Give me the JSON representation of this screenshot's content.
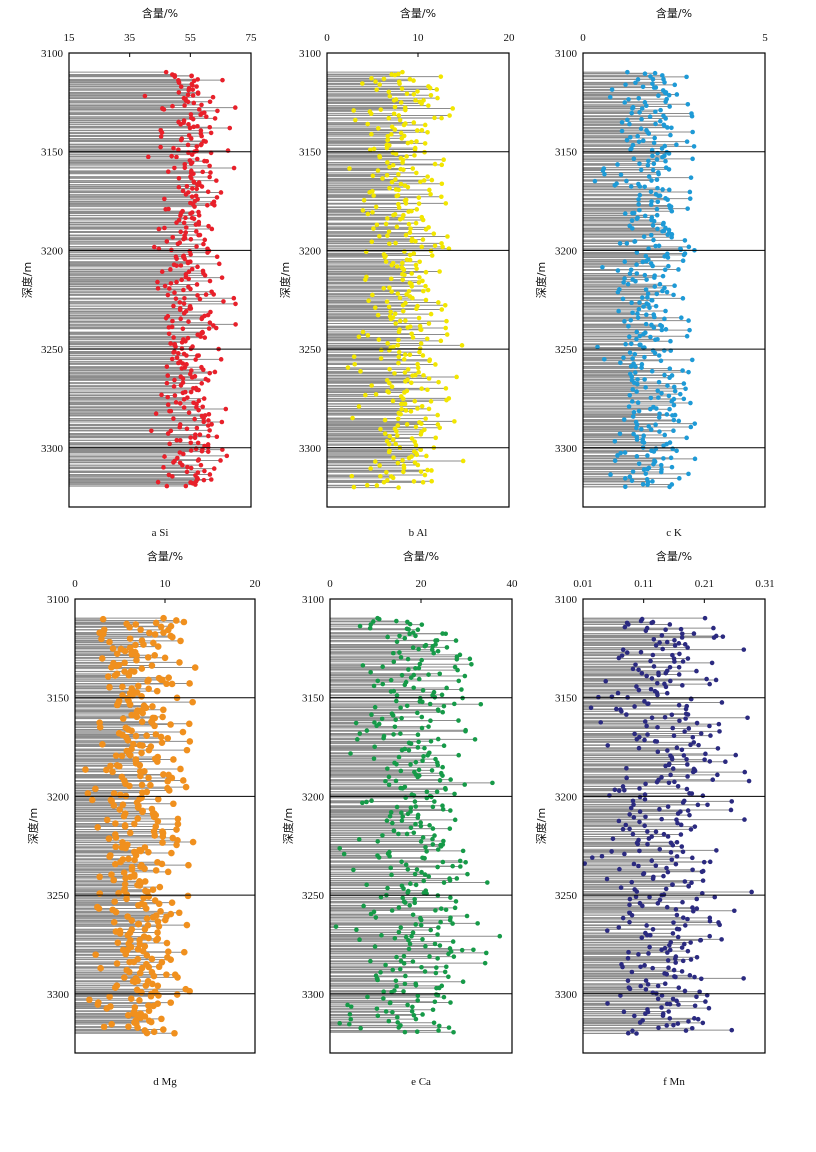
{
  "figure": {
    "xlabel": "含量/%",
    "ylabel": "深度/m"
  },
  "chart_data": [
    {
      "type": "scatter",
      "element": "Si",
      "caption": "a  Si",
      "color": "#e8202a",
      "stem_color": "#8c8c8c",
      "xlim": [
        15,
        75
      ],
      "xticks": [
        15,
        35,
        55,
        75
      ],
      "ylim": [
        3100,
        3330
      ],
      "yticks": [
        3100,
        3150,
        3200,
        3250,
        3300
      ],
      "xlabel": "含量/%",
      "ylabel": "深度/m",
      "depth_range": [
        3110,
        3320
      ],
      "typical_range": [
        40,
        70
      ],
      "n_points": 420,
      "point_style": "small",
      "seed": 11
    },
    {
      "type": "scatter",
      "element": "Al",
      "caption": "b  Al",
      "color": "#f2e600",
      "stem_color": "#8c8c8c",
      "xlim": [
        0,
        20
      ],
      "xticks": [
        0,
        10,
        20
      ],
      "ylim": [
        3100,
        3330
      ],
      "yticks": [
        3100,
        3150,
        3200,
        3250,
        3300
      ],
      "xlabel": "含量/%",
      "ylabel": "深度/m",
      "depth_range": [
        3110,
        3320
      ],
      "typical_range": [
        2,
        15
      ],
      "n_points": 420,
      "point_style": "small",
      "seed": 23
    },
    {
      "type": "scatter",
      "element": "K",
      "caption": "c  K",
      "color": "#1e9ad6",
      "stem_color": "#8c8c8c",
      "xlim": [
        0,
        5
      ],
      "xticks": [
        0,
        5
      ],
      "ylim": [
        3100,
        3330
      ],
      "yticks": [
        3100,
        3150,
        3200,
        3250,
        3300
      ],
      "xlabel": "含量/%",
      "ylabel": "深度/m",
      "depth_range": [
        3110,
        3320
      ],
      "typical_range": [
        0.3,
        3.5
      ],
      "n_points": 420,
      "point_style": "small",
      "seed": 37
    },
    {
      "type": "scatter",
      "element": "Mg",
      "caption": "d  Mg",
      "color": "#f0901e",
      "stem_color": "#8c8c8c",
      "xlim": [
        0,
        20
      ],
      "xticks": [
        0,
        10,
        20
      ],
      "ylim": [
        3100,
        3330
      ],
      "yticks": [
        3100,
        3150,
        3200,
        3250,
        3300
      ],
      "xlabel": "含量/%",
      "ylabel": "深度/m",
      "depth_range": [
        3110,
        3320
      ],
      "typical_range": [
        0.5,
        14
      ],
      "n_points": 420,
      "point_style": "large",
      "seed": 41
    },
    {
      "type": "scatter",
      "element": "Ca",
      "caption": "e  Ca",
      "color": "#169a48",
      "stem_color": "#8c8c8c",
      "xlim": [
        0,
        40
      ],
      "xticks": [
        0,
        20,
        40
      ],
      "ylim": [
        3100,
        3330
      ],
      "yticks": [
        3100,
        3150,
        3200,
        3250,
        3300
      ],
      "xlabel": "含量/%",
      "ylabel": "深度/m",
      "depth_range": [
        3110,
        3320
      ],
      "typical_range": [
        0,
        38
      ],
      "n_points": 420,
      "point_style": "small",
      "seed": 53
    },
    {
      "type": "scatter",
      "element": "Mn",
      "caption": "f  Mn",
      "color": "#2b2a80",
      "stem_color": "#8c8c8c",
      "xlim": [
        0.01,
        0.31
      ],
      "xticks": [
        0.01,
        0.11,
        0.21,
        0.31
      ],
      "ylim": [
        3100,
        3330
      ],
      "yticks": [
        3100,
        3150,
        3200,
        3250,
        3300
      ],
      "xlabel": "含量/%",
      "ylabel": "深度/m",
      "depth_range": [
        3110,
        3320
      ],
      "typical_range": [
        0.01,
        0.29
      ],
      "n_points": 420,
      "point_style": "small",
      "seed": 67
    }
  ]
}
